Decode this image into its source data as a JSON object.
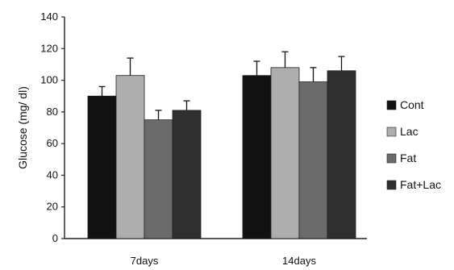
{
  "chart_data": {
    "type": "bar",
    "categories": [
      "7days",
      "14days"
    ],
    "ylabel": "Glucose (mg/ dl)",
    "xlabel": "",
    "ylim": [
      0,
      140
    ],
    "yticks": [
      0,
      20,
      40,
      60,
      80,
      100,
      120,
      140
    ],
    "legend_position": "right",
    "grid": false,
    "series": [
      {
        "name": "Cont",
        "color": "#121212",
        "values": [
          90,
          103
        ],
        "errors": [
          6,
          9
        ]
      },
      {
        "name": "Lac",
        "color": "#adadad",
        "values": [
          103,
          108
        ],
        "errors": [
          11,
          10
        ]
      },
      {
        "name": "Fat",
        "color": "#6b6b6b",
        "values": [
          75,
          99
        ],
        "errors": [
          6,
          9
        ]
      },
      {
        "name": "Fat+Lac",
        "color": "#2f2f2f",
        "values": [
          81,
          106
        ],
        "errors": [
          6,
          9
        ]
      }
    ]
  }
}
